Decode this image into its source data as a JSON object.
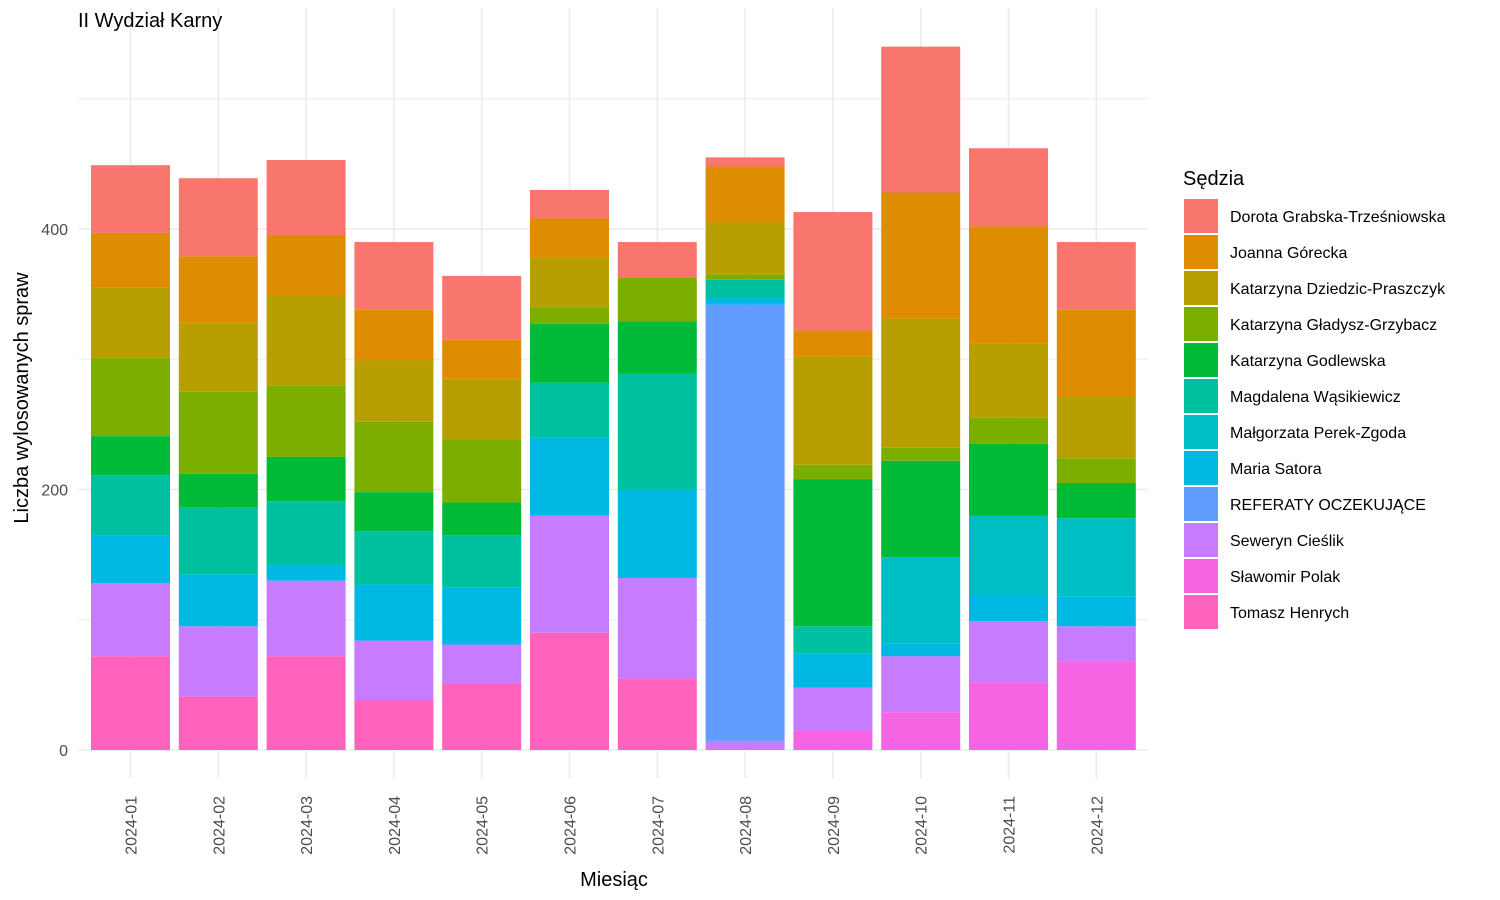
{
  "chart_data": {
    "type": "bar",
    "stacked": true,
    "title": "II Wydział Karny",
    "xlabel": "Miesiąc",
    "ylabel": "Liczba wylosowanych spraw",
    "ylim": [
      0,
      540
    ],
    "yticks": [
      0,
      200,
      400
    ],
    "grid": true,
    "legend_position": "right",
    "legend_title": "Sędzia",
    "categories": [
      "2024-01",
      "2024-02",
      "2024-03",
      "2024-04",
      "2024-05",
      "2024-06",
      "2024-07",
      "2024-08",
      "2024-09",
      "2024-10",
      "2024-11",
      "2024-12"
    ],
    "series": [
      {
        "name": "Tomasz Henrych",
        "color": "#FF62BC",
        "values": [
          72,
          41,
          72,
          38,
          51,
          90,
          55,
          0,
          0,
          0,
          0,
          0
        ]
      },
      {
        "name": "Sławomir Polak",
        "color": "#F564E3",
        "values": [
          0,
          0,
          0,
          0,
          0,
          0,
          0,
          0,
          15,
          29,
          52,
          68
        ]
      },
      {
        "name": "Seweryn Cieślik",
        "color": "#C77CFF",
        "values": [
          56,
          54,
          58,
          46,
          30,
          90,
          77,
          7,
          33,
          43,
          47,
          27
        ]
      },
      {
        "name": "REFERATY OCZEKUJĄCE",
        "color": "#619CFF",
        "values": [
          0,
          0,
          0,
          0,
          0,
          0,
          0,
          335,
          0,
          0,
          0,
          0
        ]
      },
      {
        "name": "Maria Satora",
        "color": "#00B9E3",
        "values": [
          37,
          40,
          12,
          43,
          44,
          60,
          68,
          5,
          26,
          10,
          20,
          23
        ]
      },
      {
        "name": "Małgorzata Perek-Zgoda",
        "color": "#00BFC4",
        "values": [
          0,
          0,
          0,
          0,
          0,
          0,
          0,
          0,
          0,
          66,
          61,
          60
        ]
      },
      {
        "name": "Magdalena Wąsikiewicz",
        "color": "#00C19F",
        "values": [
          46,
          51,
          49,
          41,
          40,
          42,
          89,
          14,
          21,
          0,
          0,
          0
        ]
      },
      {
        "name": "Katarzyna Godlewska",
        "color": "#00BA38",
        "values": [
          30,
          26,
          34,
          30,
          25,
          45,
          40,
          0,
          113,
          74,
          55,
          27
        ]
      },
      {
        "name": "Katarzyna Gładysz-Grzybacz",
        "color": "#7CAE00",
        "values": [
          60,
          63,
          55,
          54,
          48,
          13,
          34,
          4,
          11,
          10,
          20,
          19
        ]
      },
      {
        "name": "Katarzyna Dziedzic-Praszczyk",
        "color": "#B79F00",
        "values": [
          54,
          53,
          69,
          47,
          47,
          38,
          0,
          40,
          83,
          99,
          57,
          47
        ]
      },
      {
        "name": "Joanna Górecka",
        "color": "#DE8C00",
        "values": [
          42,
          51,
          46,
          39,
          30,
          30,
          0,
          43,
          20,
          97,
          90,
          67
        ]
      },
      {
        "name": "Dorota Grabska-Trześniowska",
        "color": "#F8766D",
        "values": [
          52,
          60,
          58,
          52,
          49,
          22,
          27,
          7,
          91,
          112,
          60,
          52
        ]
      }
    ]
  }
}
